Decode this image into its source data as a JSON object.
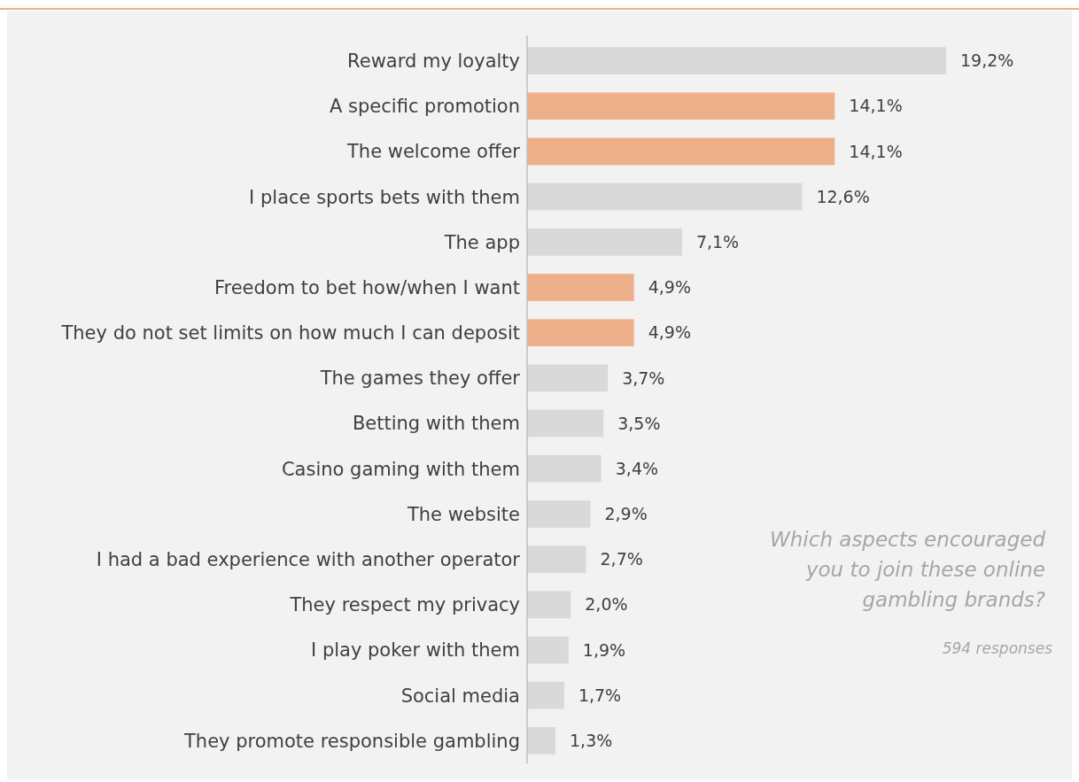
{
  "chart_data": {
    "type": "bar",
    "orientation": "horizontal",
    "categories": [
      "Reward my loyalty",
      "A specific promotion",
      "The welcome offer",
      "I place sports bets with them",
      "The app",
      "Freedom to bet how/when I want",
      "They do not set limits on how much I can deposit",
      "The games they offer",
      "Betting with them",
      "Casino gaming with them",
      "The website",
      "I had a bad experience with another operator",
      "They respect my privacy",
      "I play poker with them",
      "Social media",
      "They promote responsible gambling"
    ],
    "values": [
      19.2,
      14.1,
      14.1,
      12.6,
      7.1,
      4.9,
      4.9,
      3.7,
      3.5,
      3.4,
      2.9,
      2.7,
      2.0,
      1.9,
      1.7,
      1.3
    ],
    "value_labels": [
      "19,2%",
      "14,1%",
      "14,1%",
      "12,6%",
      "7,1%",
      "4,9%",
      "4,9%",
      "3,7%",
      "3,5%",
      "3,4%",
      "2,9%",
      "2,7%",
      "2,0%",
      "1,9%",
      "1,7%",
      "1,3%"
    ],
    "colors": [
      "#d9d9d9",
      "#edb08a",
      "#edb08a",
      "#d9d9d9",
      "#d9d9d9",
      "#edb08a",
      "#edb08a",
      "#d9d9d9",
      "#d9d9d9",
      "#d9d9d9",
      "#d9d9d9",
      "#d9d9d9",
      "#d9d9d9",
      "#d9d9d9",
      "#d9d9d9",
      "#d9d9d9"
    ],
    "annotations": [
      "Which aspects encouraged you to join these online gambling brands?",
      "594 responses"
    ]
  }
}
